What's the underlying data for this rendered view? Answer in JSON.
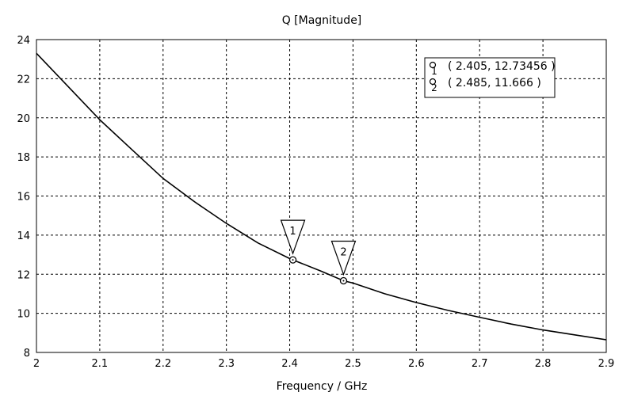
{
  "chart_data": {
    "type": "line",
    "title": "Q [Magnitude]",
    "xlabel": "Frequency / GHz",
    "ylabel": "",
    "xlim": [
      2,
      2.9
    ],
    "ylim": [
      8,
      24
    ],
    "xticks": [
      "2",
      "2.1",
      "2.2",
      "2.3",
      "2.4",
      "2.5",
      "2.6",
      "2.7",
      "2.8",
      "2.9"
    ],
    "yticks": [
      "8",
      "10",
      "12",
      "14",
      "16",
      "18",
      "20",
      "22",
      "24"
    ],
    "grid": true,
    "legend_position": "top-right",
    "series": [
      {
        "color": "#000000",
        "x": [
          2.0,
          2.05,
          2.1,
          2.15,
          2.2,
          2.25,
          2.3,
          2.35,
          2.4,
          2.405,
          2.45,
          2.485,
          2.5,
          2.55,
          2.6,
          2.65,
          2.7,
          2.75,
          2.8,
          2.85,
          2.9
        ],
        "y": [
          23.3,
          21.6,
          19.9,
          18.4,
          16.9,
          15.7,
          14.6,
          13.6,
          12.8,
          12.73456,
          12.15,
          11.666,
          11.55,
          11.0,
          10.55,
          10.15,
          9.8,
          9.45,
          9.15,
          8.9,
          8.65
        ]
      }
    ],
    "markers": [
      {
        "label": "1",
        "x": 2.405,
        "y": 12.73456,
        "text": "( 2.405, 12.73456 )"
      },
      {
        "label": "2",
        "x": 2.485,
        "y": 11.666,
        "text": "( 2.485, 11.666 )"
      }
    ]
  }
}
